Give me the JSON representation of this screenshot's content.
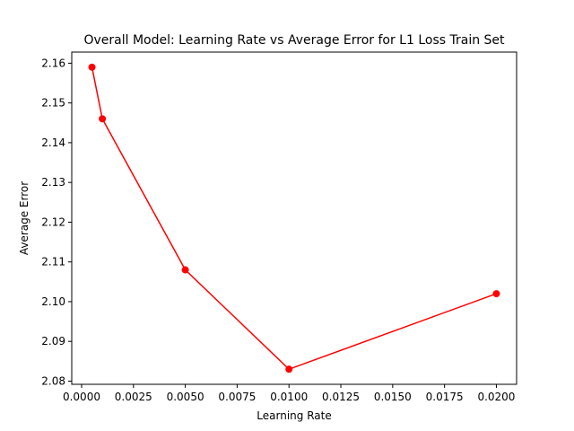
{
  "chart_data": {
    "type": "line",
    "title": "Overall Model: Learning Rate vs Average Error for L1 Loss Train Set",
    "xlabel": "Learning Rate",
    "ylabel": "Average Error",
    "series": [
      {
        "x": [
          0.0005,
          0.001,
          0.005,
          0.01,
          0.02
        ],
        "y": [
          2.159,
          2.146,
          2.108,
          2.083,
          2.102
        ],
        "color": "#ff0000",
        "marker": "circle"
      }
    ],
    "xlim": [
      -0.000475,
      0.020975
    ],
    "ylim": [
      2.0792,
      2.1628
    ],
    "xticks": [
      0.0,
      0.0025,
      0.005,
      0.0075,
      0.01,
      0.0125,
      0.015,
      0.0175,
      0.02
    ],
    "xtick_labels": [
      "0.0000",
      "0.0025",
      "0.0050",
      "0.0075",
      "0.0100",
      "0.0125",
      "0.0150",
      "0.0175",
      "0.0200"
    ],
    "yticks": [
      2.08,
      2.09,
      2.1,
      2.11,
      2.12,
      2.13,
      2.14,
      2.15,
      2.16
    ],
    "ytick_labels": [
      "2.08",
      "2.09",
      "2.10",
      "2.11",
      "2.12",
      "2.13",
      "2.14",
      "2.15",
      "2.16"
    ],
    "grid": false,
    "legend": false
  }
}
